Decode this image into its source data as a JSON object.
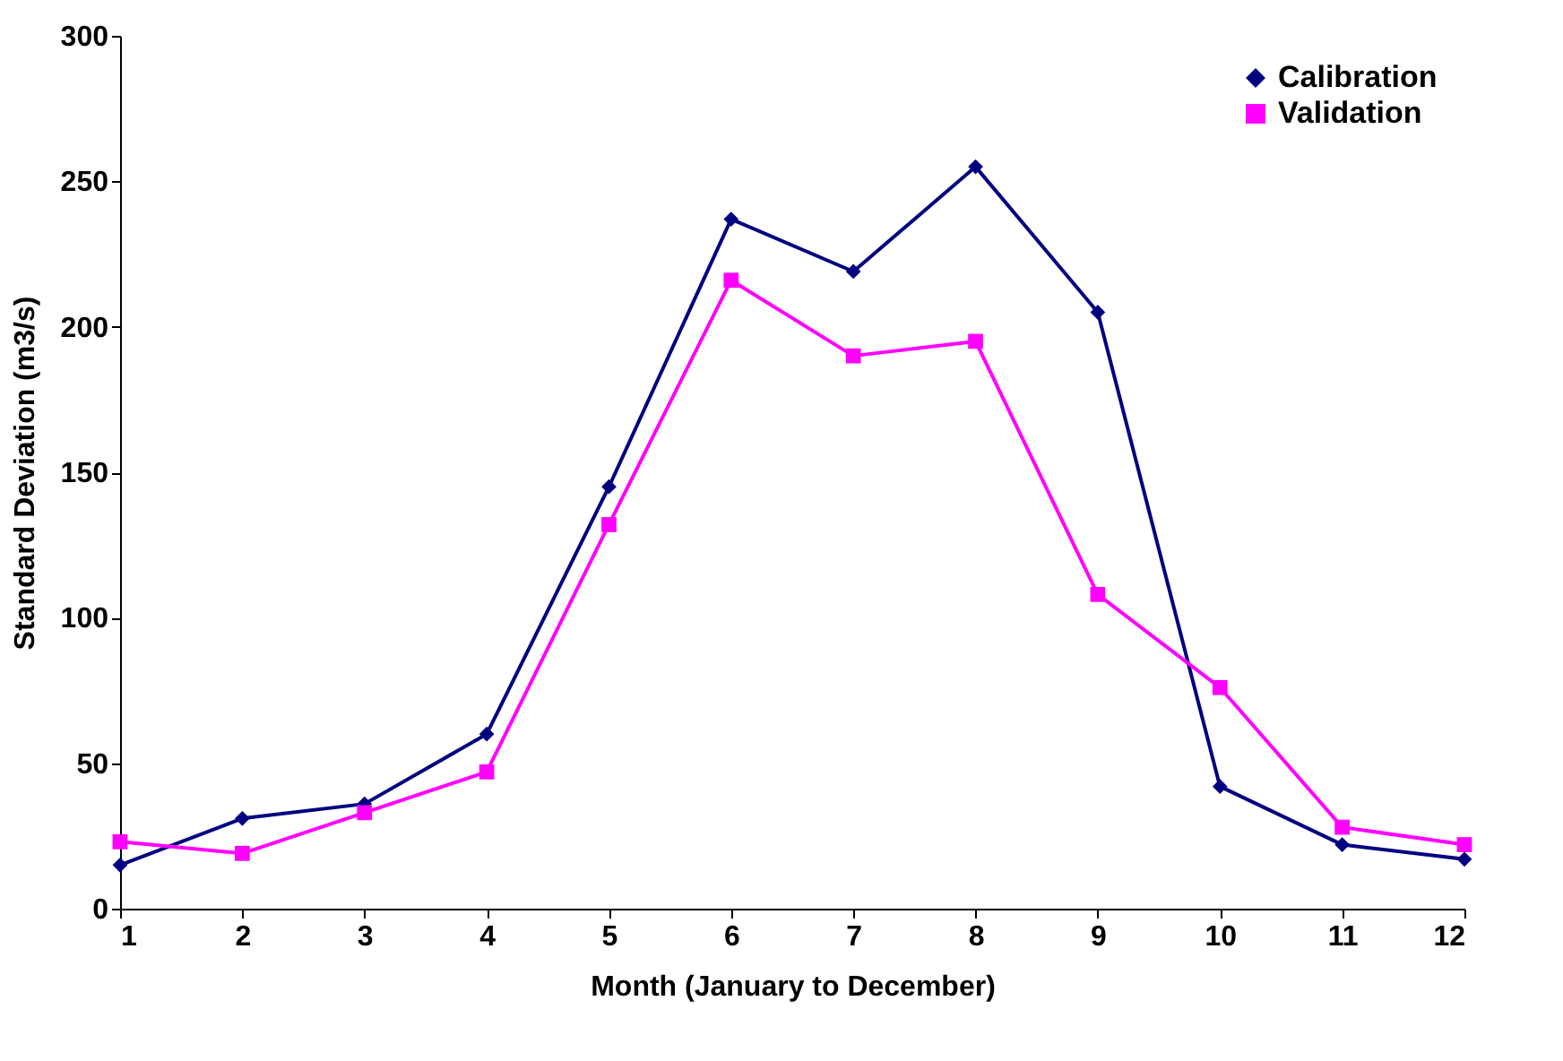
{
  "chart_data": {
    "type": "line",
    "xlabel": "Month (January to December)",
    "ylabel": "Standard Deviation (m3/s)",
    "x": [
      1,
      2,
      3,
      4,
      5,
      6,
      7,
      8,
      9,
      10,
      11,
      12
    ],
    "xlim": [
      1,
      12
    ],
    "xticks": [
      1,
      2,
      3,
      4,
      5,
      6,
      7,
      8,
      9,
      10,
      11,
      12
    ],
    "ylim": [
      0,
      300
    ],
    "yticks": [
      0,
      50,
      100,
      150,
      200,
      250,
      300
    ],
    "grid": false,
    "legend": "top right",
    "line_style": "solid",
    "series": [
      {
        "name": "Calibration",
        "color": "#000080",
        "marker": "diamond",
        "values": [
          15,
          31,
          36,
          60,
          145,
          237,
          219,
          255,
          205,
          42,
          22,
          17
        ]
      },
      {
        "name": "Validation",
        "color": "#ff00ff",
        "marker": "square",
        "values": [
          23,
          19,
          33,
          47,
          132,
          216,
          190,
          195,
          108,
          76,
          28,
          22
        ]
      }
    ]
  }
}
